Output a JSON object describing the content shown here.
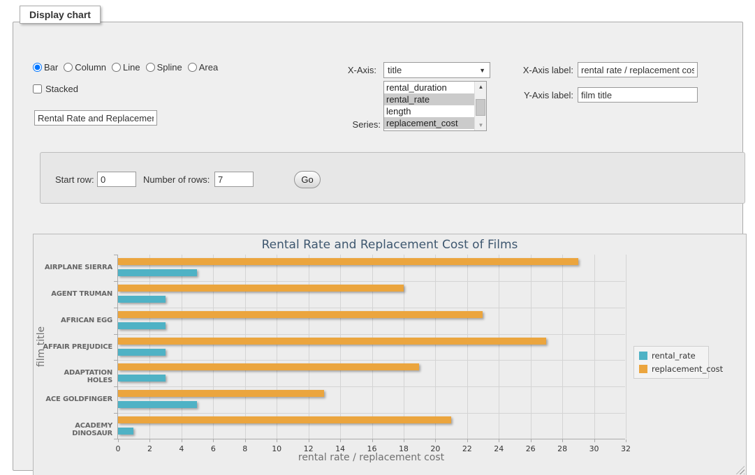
{
  "window": {
    "legend_label": "Display chart"
  },
  "controls": {
    "chart_types": [
      {
        "label": "Bar",
        "checked": true
      },
      {
        "label": "Column",
        "checked": false
      },
      {
        "label": "Line",
        "checked": false
      },
      {
        "label": "Spline",
        "checked": false
      },
      {
        "label": "Area",
        "checked": false
      }
    ],
    "stacked": {
      "label": "Stacked",
      "checked": false
    },
    "title_input": {
      "value": "Rental Rate and Replacement Cost of Films"
    },
    "x_axis": {
      "label": "X-Axis:",
      "selected": "title",
      "arrow": "▼"
    },
    "series_select": {
      "label": "Series:",
      "options": [
        {
          "label": "rental_duration",
          "selected": false
        },
        {
          "label": "rental_rate",
          "selected": true
        },
        {
          "label": "length",
          "selected": false
        },
        {
          "label": "replacement_cost",
          "selected": true
        }
      ],
      "scroll_up": "▲",
      "scroll_down": "▼"
    },
    "x_axis_label": {
      "label": "X-Axis label:",
      "value": "rental rate / replacement cost"
    },
    "y_axis_label": {
      "label": "Y-Axis label:",
      "value": "film title"
    }
  },
  "pager": {
    "start_row_label": "Start row:",
    "start_row_value": "0",
    "num_rows_label": "Number of rows:",
    "num_rows_value": "7",
    "go_label": "Go"
  },
  "chart_data": {
    "type": "bar",
    "title": "Rental Rate and Replacement Cost of Films",
    "categories": [
      "AIRPLANE SIERRA",
      "AGENT TRUMAN",
      "AFRICAN EGG",
      "AFFAIR PREJUDICE",
      "ADAPTATION HOLES",
      "ACE GOLDFINGER",
      "ACADEMY DINOSAUR"
    ],
    "series": [
      {
        "name": "rental_rate",
        "color": "#4FB2C5",
        "values": [
          4.99,
          2.99,
          2.99,
          2.99,
          2.99,
          4.99,
          0.99
        ]
      },
      {
        "name": "replacement_cost",
        "color": "#EBA53E",
        "values": [
          28.99,
          17.99,
          22.99,
          26.99,
          18.99,
          12.99,
          20.99
        ]
      }
    ],
    "xlabel": "rental rate / replacement cost",
    "ylabel": "film title",
    "xlim": [
      0,
      32
    ],
    "x_ticks": [
      0,
      2,
      4,
      6,
      8,
      10,
      12,
      14,
      16,
      18,
      20,
      22,
      24,
      26,
      28,
      30,
      32
    ],
    "grid": true,
    "legend_position": "right"
  }
}
